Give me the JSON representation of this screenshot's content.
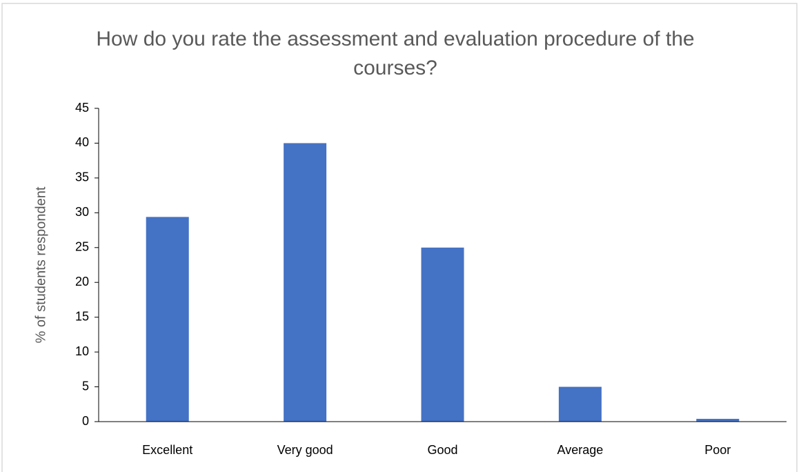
{
  "chart_data": {
    "type": "bar",
    "title": "How do you rate the assessment and evaluation procedure of the courses?",
    "y_label": "% of students respondent",
    "categories": [
      "Excellent",
      "Very good",
      "Good",
      "Average",
      "Poor"
    ],
    "values": [
      29.4,
      40,
      25,
      5,
      0.4
    ],
    "color": "#4472c4",
    "ylim": [
      0,
      45
    ],
    "yticks": [
      0,
      5,
      10,
      15,
      20,
      25,
      30,
      35,
      40,
      45
    ],
    "grid": false
  }
}
